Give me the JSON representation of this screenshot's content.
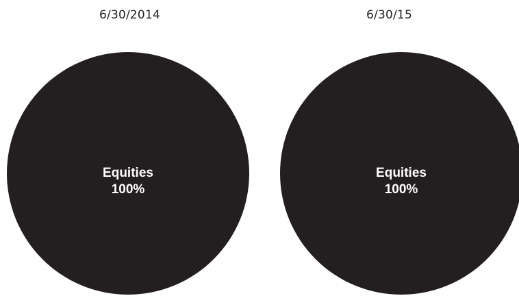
{
  "colors": {
    "slice_fill": "#231f20",
    "label_color": "#ffffff",
    "title_color": "#231f20"
  },
  "chart_data": [
    {
      "type": "pie",
      "title": "6/30/2014",
      "slices": [
        {
          "label": "Equities",
          "value": 100,
          "value_label": "100%"
        }
      ]
    },
    {
      "type": "pie",
      "title": "6/30/15",
      "slices": [
        {
          "label": "Equities",
          "value": 100,
          "value_label": "100%"
        }
      ]
    }
  ]
}
